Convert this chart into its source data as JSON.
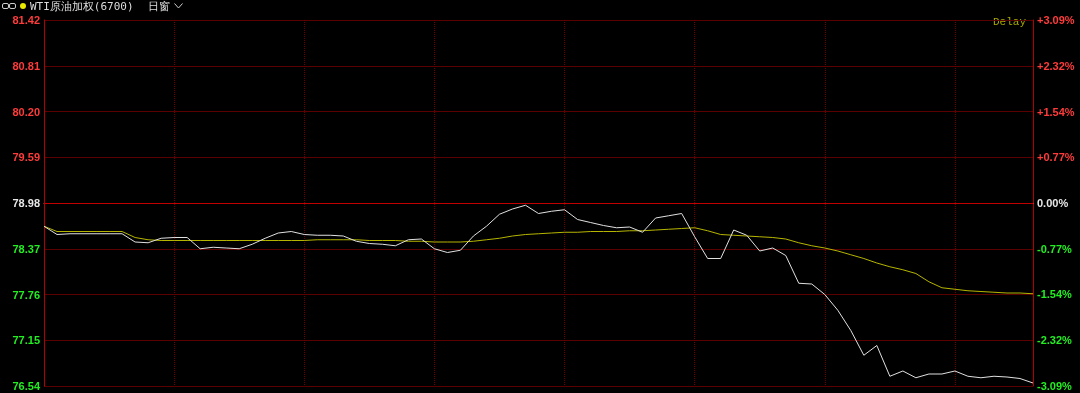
{
  "chart_data": {
    "type": "line",
    "title": "WTI原油加权(6700)",
    "subtitle": "日窗",
    "annotations": [
      "Delay"
    ],
    "categories": [
      null,
      null,
      null,
      null,
      null,
      null,
      null,
      null,
      null,
      null,
      null,
      null,
      null,
      null,
      null,
      null,
      null,
      null,
      null,
      null,
      null,
      null,
      null,
      null,
      null,
      null,
      null,
      null,
      null,
      null,
      null,
      null,
      null,
      null,
      null,
      null,
      null,
      null,
      null,
      null,
      null,
      null,
      null,
      null,
      null,
      null,
      null,
      null,
      null,
      null,
      null,
      null,
      null,
      null,
      null,
      null,
      null,
      null,
      null,
      null,
      null,
      null,
      null,
      null,
      null,
      null,
      null,
      null,
      null,
      null,
      null,
      null,
      null,
      null,
      null,
      null,
      null
    ],
    "ylim": [
      76.54,
      81.42
    ],
    "yticks": [
      76.54,
      77.15,
      77.76,
      78.37,
      78.98,
      79.59,
      {
        "value": 80.2,
        "label": "80.20"
      },
      80.81,
      81.42
    ],
    "y2lim": [
      -3.09,
      3.09
    ],
    "y2ticks": [
      {
        "value": -3.09,
        "label": "-3.09%"
      },
      {
        "value": -2.32,
        "label": "-2.32%"
      },
      {
        "value": -1.54,
        "label": "-1.54%"
      },
      {
        "value": -0.77,
        "label": "-0.77%"
      },
      {
        "value": 0,
        "label": "0.00%"
      },
      {
        "value": 0.77,
        "label": "+0.77%"
      },
      {
        "value": 1.54,
        "label": "+1.54%"
      },
      {
        "value": 2.32,
        "label": "+2.32%"
      },
      {
        "value": 3.09,
        "label": "+3.09%"
      }
    ],
    "ref_lines": [
      {
        "axis": "y",
        "value": 78.98,
        "color": "#c00000"
      }
    ],
    "grid": true,
    "tick_labels": "y",
    "marker": "none",
    "line_style": "solid",
    "series": [
      {
        "color": "#e0e0e0",
        "values": [
          78.67,
          78.56,
          78.57,
          78.57,
          78.57,
          78.57,
          78.57,
          78.46,
          78.45,
          78.51,
          78.52,
          78.52,
          78.37,
          78.39,
          78.38,
          78.37,
          78.43,
          78.51,
          78.58,
          78.6,
          78.56,
          78.55,
          78.55,
          78.54,
          78.47,
          78.44,
          78.43,
          78.41,
          78.49,
          78.5,
          78.37,
          78.32,
          78.35,
          78.54,
          78.67,
          78.83,
          78.9,
          78.95,
          78.84,
          78.87,
          78.89,
          78.76,
          78.72,
          78.68,
          78.65,
          78.66,
          78.59,
          78.78,
          78.81,
          78.84,
          78.53,
          78.24,
          78.24,
          78.62,
          78.55,
          78.34,
          78.38,
          78.28,
          77.91,
          77.9,
          77.76,
          77.55,
          77.28,
          76.95,
          77.08,
          76.67,
          76.74,
          76.65,
          76.7,
          76.7,
          76.74,
          76.67,
          76.65,
          76.67,
          76.66,
          76.64,
          76.58
        ]
      },
      {
        "color": "#b5b500",
        "values": [
          78.67,
          78.6,
          78.6,
          78.6,
          78.6,
          78.6,
          78.6,
          78.52,
          78.49,
          78.48,
          78.48,
          78.48,
          78.48,
          78.48,
          78.48,
          78.48,
          78.48,
          78.48,
          78.48,
          78.48,
          78.48,
          78.49,
          78.49,
          78.49,
          78.49,
          78.48,
          78.48,
          78.48,
          78.47,
          78.47,
          78.46,
          78.46,
          78.46,
          78.47,
          78.49,
          78.51,
          78.54,
          78.56,
          78.57,
          78.58,
          78.59,
          78.59,
          78.6,
          78.6,
          78.6,
          78.61,
          78.61,
          78.62,
          78.63,
          78.64,
          78.65,
          78.61,
          78.56,
          78.55,
          78.54,
          78.53,
          78.52,
          78.5,
          78.45,
          78.41,
          78.38,
          78.34,
          78.29,
          78.24,
          78.18,
          78.13,
          78.09,
          78.04,
          77.93,
          77.85,
          77.83,
          77.81,
          77.8,
          77.79,
          77.78,
          77.78,
          77.77
        ]
      }
    ]
  }
}
